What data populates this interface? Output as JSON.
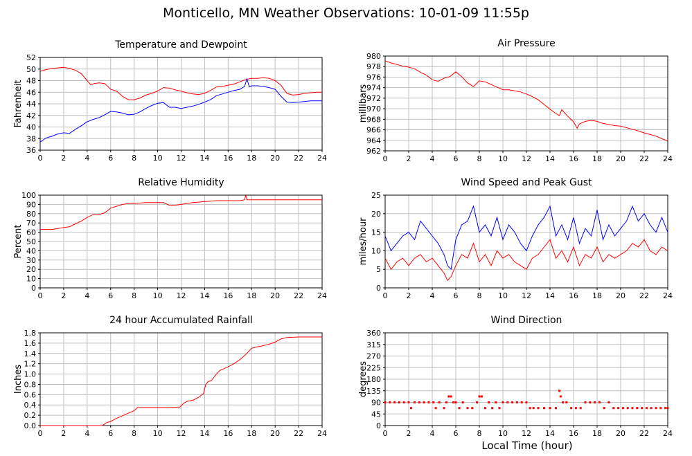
{
  "page": {
    "title": "Monticello, MN Weather Observations: 10-01-09 11:55p",
    "xlabel": "Local Time (hour)"
  },
  "colors": {
    "red": "#ff0000",
    "blue": "#0000ff",
    "grid": "#c0c0c0"
  },
  "chart_data": [
    {
      "id": "temp",
      "type": "line",
      "title": "Temperature and Dewpoint",
      "ylabel": "Fahrenheit",
      "xlim": [
        0,
        24
      ],
      "ylim": [
        36,
        52
      ],
      "xticks": [
        0,
        2,
        4,
        6,
        8,
        10,
        12,
        14,
        16,
        18,
        20,
        22,
        24
      ],
      "yticks": [
        36,
        38,
        40,
        42,
        44,
        46,
        48,
        50,
        52
      ],
      "grid": true,
      "series": [
        {
          "color": "#ff0000",
          "x": [
            0,
            0.5,
            1,
            1.5,
            2,
            2.5,
            3,
            3.5,
            4,
            4.3,
            4.6,
            5,
            5.5,
            6,
            6.5,
            7,
            7.5,
            8,
            8.5,
            9,
            9.5,
            10,
            10.5,
            11,
            11.5,
            12,
            12.5,
            13,
            13.5,
            14,
            14.5,
            15,
            15.5,
            16,
            16.5,
            17,
            17.5,
            18,
            18.5,
            19,
            19.5,
            20,
            20.5,
            21,
            21.5,
            22,
            22.5,
            23,
            23.5,
            24
          ],
          "y": [
            49.6,
            49.9,
            50.1,
            50.2,
            50.3,
            50.1,
            49.8,
            49.2,
            48.0,
            47.3,
            47.5,
            47.6,
            47.5,
            46.5,
            46.2,
            45.3,
            44.7,
            44.7,
            45.0,
            45.5,
            45.8,
            46.2,
            46.8,
            46.7,
            46.4,
            46.2,
            45.9,
            45.7,
            45.6,
            45.8,
            46.3,
            46.9,
            47.0,
            47.2,
            47.4,
            47.8,
            48.2,
            48.4,
            48.4,
            48.5,
            48.4,
            48.0,
            47.2,
            45.8,
            45.5,
            45.6,
            45.8,
            45.9,
            46.0,
            46.0
          ]
        },
        {
          "color": "#0000ff",
          "x": [
            0,
            0.5,
            1,
            1.5,
            2,
            2.5,
            3,
            3.5,
            4,
            4.5,
            5,
            5.5,
            6,
            6.5,
            7,
            7.5,
            8,
            8.5,
            9,
            9.5,
            10,
            10.5,
            11,
            11.5,
            12,
            12.5,
            13,
            13.5,
            14,
            14.5,
            15,
            15.5,
            16,
            16.5,
            17,
            17.4,
            17.6,
            17.8,
            18,
            18.5,
            19,
            19.5,
            20,
            20.5,
            21,
            21.5,
            22,
            22.5,
            23,
            23.5,
            24
          ],
          "y": [
            37.4,
            38.1,
            38.4,
            38.8,
            39.0,
            38.9,
            39.6,
            40.2,
            40.9,
            41.3,
            41.6,
            42.1,
            42.7,
            42.6,
            42.4,
            42.1,
            42.2,
            42.6,
            43.2,
            43.7,
            44.1,
            44.2,
            43.4,
            43.4,
            43.2,
            43.4,
            43.6,
            43.9,
            44.3,
            44.7,
            45.4,
            45.7,
            46.0,
            46.3,
            46.5,
            47.0,
            48.3,
            46.9,
            47.1,
            47.1,
            47.0,
            46.8,
            46.5,
            45.3,
            44.3,
            44.2,
            44.3,
            44.4,
            44.5,
            44.5,
            44.5
          ]
        }
      ]
    },
    {
      "id": "pressure",
      "type": "line",
      "title": "Air Pressure",
      "ylabel": "millibars",
      "xlim": [
        0,
        24
      ],
      "ylim": [
        962,
        980
      ],
      "xticks": [
        0,
        2,
        4,
        6,
        8,
        10,
        12,
        14,
        16,
        18,
        20,
        22,
        24
      ],
      "yticks": [
        962,
        964,
        966,
        968,
        970,
        972,
        974,
        976,
        978,
        980
      ],
      "grid": true,
      "series": [
        {
          "color": "#ff0000",
          "x": [
            0,
            0.5,
            1,
            1.5,
            2,
            2.5,
            3,
            3.5,
            4,
            4.5,
            5,
            5.5,
            6,
            6.5,
            7,
            7.5,
            8,
            8.5,
            9,
            9.5,
            10,
            10.5,
            11,
            11.5,
            12,
            12.5,
            13,
            13.5,
            14,
            14.5,
            14.8,
            15,
            15.5,
            16,
            16.3,
            16.5,
            17,
            17.5,
            18,
            18.5,
            19,
            19.5,
            20,
            20.5,
            21,
            21.5,
            22,
            22.5,
            23,
            23.5,
            24
          ],
          "y": [
            979.1,
            978.7,
            978.4,
            978.1,
            977.9,
            977.6,
            976.9,
            976.4,
            975.5,
            975.2,
            975.8,
            976.1,
            977.0,
            976.1,
            974.9,
            974.2,
            975.3,
            975.1,
            974.6,
            974.1,
            973.6,
            973.6,
            973.4,
            973.2,
            972.8,
            972.3,
            971.7,
            970.8,
            969.9,
            969.1,
            968.7,
            969.8,
            968.6,
            967.5,
            966.3,
            967.1,
            967.6,
            967.8,
            967.6,
            967.2,
            967.0,
            966.8,
            966.7,
            966.4,
            966.1,
            965.8,
            965.4,
            965.1,
            964.8,
            964.3,
            963.9
          ]
        }
      ]
    },
    {
      "id": "humidity",
      "type": "line",
      "title": "Relative Humidity",
      "ylabel": "Percent",
      "xlim": [
        0,
        24
      ],
      "ylim": [
        0,
        100
      ],
      "xticks": [
        0,
        2,
        4,
        6,
        8,
        10,
        12,
        14,
        16,
        18,
        20,
        22,
        24
      ],
      "yticks": [
        0,
        10,
        20,
        30,
        40,
        50,
        60,
        70,
        80,
        90,
        100
      ],
      "grid": true,
      "series": [
        {
          "color": "#ff0000",
          "x": [
            0,
            1,
            1.5,
            2,
            2.5,
            3,
            3.5,
            4,
            4.5,
            5,
            5.5,
            6,
            6.5,
            7,
            7.5,
            8,
            9,
            10,
            10.5,
            11,
            11.5,
            12,
            12.5,
            13,
            14,
            15,
            16,
            17,
            17.4,
            17.5,
            17.6,
            18,
            19,
            20,
            21,
            22,
            23,
            24
          ],
          "y": [
            63,
            63,
            64,
            65,
            66,
            69,
            72,
            76,
            79,
            79,
            81,
            86,
            88,
            90,
            91,
            91,
            92,
            92,
            92,
            89,
            89,
            90,
            91,
            92,
            93,
            94,
            94,
            94,
            95,
            100,
            95,
            95,
            95,
            95,
            95,
            95,
            95,
            95
          ]
        }
      ]
    },
    {
      "id": "wind",
      "type": "line",
      "title": "Wind Speed and Peak Gust",
      "ylabel": "miles/hour",
      "xlim": [
        0,
        24
      ],
      "ylim": [
        0,
        25
      ],
      "xticks": [
        0,
        2,
        4,
        6,
        8,
        10,
        12,
        14,
        16,
        18,
        20,
        22,
        24
      ],
      "yticks": [
        0,
        5,
        10,
        15,
        20,
        25
      ],
      "grid": true,
      "series": [
        {
          "color": "#0000ff",
          "x": [
            0,
            0.5,
            1,
            1.5,
            2,
            2.5,
            3,
            3.5,
            4,
            4.5,
            5,
            5.3,
            5.6,
            6,
            6.5,
            7,
            7.5,
            8,
            8.5,
            9,
            9.5,
            10,
            10.5,
            11,
            11.5,
            12,
            12.5,
            13,
            13.5,
            14,
            14.5,
            15,
            15.5,
            16,
            16.5,
            17,
            17.5,
            18,
            18.5,
            19,
            19.5,
            20,
            20.5,
            21,
            21.5,
            22,
            22.5,
            23,
            23.5,
            24
          ],
          "y": [
            14,
            10,
            12,
            14,
            15,
            13,
            18,
            16,
            14,
            12,
            9,
            6,
            5,
            13,
            17,
            18,
            22,
            15,
            17,
            14,
            19,
            13,
            17,
            15,
            12,
            10,
            14,
            17,
            19,
            22,
            14,
            17,
            13,
            19,
            12,
            16,
            14,
            21,
            13,
            17,
            14,
            16,
            18,
            22,
            18,
            20,
            17,
            15,
            19,
            15
          ]
        },
        {
          "color": "#ff0000",
          "x": [
            0,
            0.5,
            1,
            1.5,
            2,
            2.5,
            3,
            3.5,
            4,
            4.5,
            5,
            5.3,
            5.6,
            6,
            6.5,
            7,
            7.5,
            8,
            8.5,
            9,
            9.5,
            10,
            10.5,
            11,
            11.5,
            12,
            12.5,
            13,
            13.5,
            14,
            14.5,
            15,
            15.5,
            16,
            16.5,
            17,
            17.5,
            18,
            18.5,
            19,
            19.5,
            20,
            20.5,
            21,
            21.5,
            22,
            22.5,
            23,
            23.5,
            24
          ],
          "y": [
            8,
            5,
            7,
            8,
            6,
            8,
            9,
            7,
            8,
            6,
            4,
            2,
            3,
            6,
            9,
            8,
            12,
            7,
            9,
            6,
            10,
            8,
            9,
            7,
            6,
            5,
            8,
            9,
            11,
            13,
            8,
            10,
            7,
            11,
            6,
            9,
            8,
            11,
            7,
            9,
            8,
            9,
            10,
            12,
            11,
            13,
            10,
            9,
            11,
            10
          ]
        }
      ]
    },
    {
      "id": "rain",
      "type": "line",
      "title": "24 hour Accumulated Rainfall",
      "ylabel": "Inches",
      "xlim": [
        0,
        24
      ],
      "ylim": [
        0,
        1.8
      ],
      "xticks": [
        0,
        2,
        4,
        6,
        8,
        10,
        12,
        14,
        16,
        18,
        20,
        22,
        24
      ],
      "yticks": [
        0.0,
        0.2,
        0.4,
        0.6,
        0.8,
        1.0,
        1.2,
        1.4,
        1.6,
        1.8
      ],
      "grid": true,
      "series": [
        {
          "color": "#ff0000",
          "x": [
            0,
            5.3,
            5.6,
            6,
            6.5,
            7,
            7.5,
            8,
            8.3,
            9,
            10,
            11,
            11.9,
            12.2,
            12.5,
            13,
            13.5,
            13.9,
            14.1,
            14.3,
            14.6,
            15,
            15.3,
            15.6,
            16,
            16.5,
            17,
            17.5,
            18,
            18.5,
            19,
            19.5,
            20,
            20.5,
            21,
            22,
            23,
            24
          ],
          "y": [
            0,
            0,
            0.05,
            0.08,
            0.14,
            0.19,
            0.24,
            0.29,
            0.35,
            0.35,
            0.35,
            0.35,
            0.36,
            0.43,
            0.47,
            0.49,
            0.55,
            0.62,
            0.8,
            0.85,
            0.88,
            1.0,
            1.07,
            1.1,
            1.14,
            1.2,
            1.28,
            1.38,
            1.5,
            1.53,
            1.55,
            1.58,
            1.62,
            1.68,
            1.71,
            1.72,
            1.72,
            1.72
          ]
        }
      ]
    },
    {
      "id": "direction",
      "type": "scatter",
      "title": "Wind Direction",
      "ylabel": "degrees",
      "xlim": [
        0,
        24
      ],
      "ylim": [
        0,
        360
      ],
      "xticks": [
        0,
        2,
        4,
        6,
        8,
        10,
        12,
        14,
        16,
        18,
        20,
        22,
        24
      ],
      "yticks": [
        0,
        45,
        90,
        135,
        180,
        225,
        270,
        315,
        360
      ],
      "grid": true,
      "series": [
        {
          "color": "#ff0000",
          "x": [
            0,
            0.4,
            0.8,
            1.2,
            1.6,
            2.0,
            2.2,
            2.5,
            2.9,
            3.3,
            3.7,
            4.1,
            4.3,
            4.6,
            5.0,
            5.2,
            5.4,
            5.6,
            5.8,
            6.0,
            6.3,
            6.6,
            7.0,
            7.4,
            7.8,
            8.0,
            8.2,
            8.5,
            8.8,
            9.1,
            9.4,
            9.7,
            10.0,
            10.4,
            10.8,
            11.2,
            11.6,
            12.0,
            12.3,
            12.6,
            13.0,
            13.5,
            14.0,
            14.5,
            14.8,
            14.9,
            15.1,
            15.4,
            15.8,
            16.2,
            16.6,
            17.0,
            17.4,
            17.8,
            18.2,
            18.6,
            19.0,
            19.4,
            19.8,
            20.2,
            20.6,
            21.0,
            21.4,
            21.8,
            22.2,
            22.6,
            23.0,
            23.4,
            23.8,
            24.0
          ],
          "y": [
            90,
            90,
            90,
            90,
            90,
            90,
            68,
            90,
            90,
            90,
            90,
            90,
            68,
            90,
            68,
            90,
            113,
            113,
            90,
            90,
            68,
            90,
            68,
            68,
            90,
            113,
            113,
            68,
            90,
            68,
            90,
            68,
            90,
            90,
            90,
            90,
            90,
            90,
            68,
            68,
            68,
            68,
            68,
            68,
            135,
            113,
            90,
            90,
            68,
            68,
            68,
            90,
            90,
            90,
            90,
            68,
            90,
            68,
            68,
            68,
            68,
            68,
            68,
            68,
            68,
            68,
            68,
            68,
            68,
            68
          ]
        }
      ]
    }
  ]
}
